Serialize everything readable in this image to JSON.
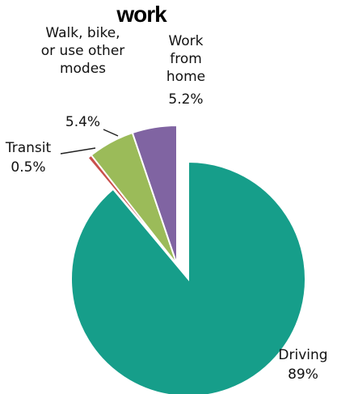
{
  "chart_data": {
    "type": "pie",
    "title": "work",
    "categories": [
      "Driving",
      "Transit",
      "Walk, bike, or use other modes",
      "Work from home"
    ],
    "values": [
      89,
      0.5,
      5.4,
      5.2
    ],
    "value_labels": [
      "89%",
      "0.5%",
      "5.4%",
      "5.2%"
    ],
    "colors": [
      "#169e8a",
      "#c9504c",
      "#9bbb59",
      "#8064a2"
    ]
  }
}
